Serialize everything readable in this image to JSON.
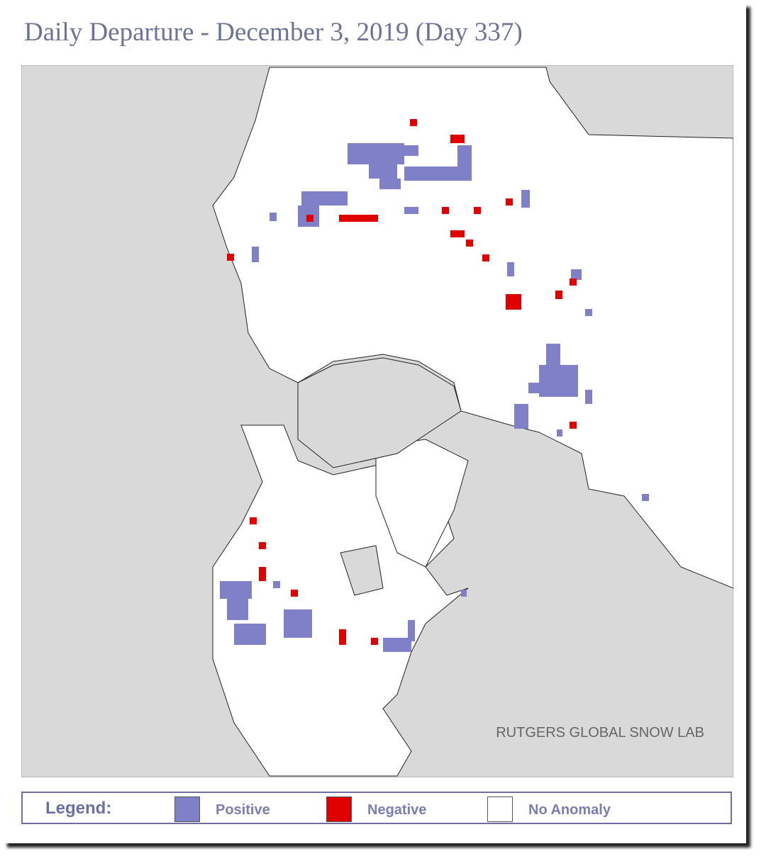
{
  "header": {
    "title": "Daily Departure - December 3, 2019 (Day 337)"
  },
  "map": {
    "credit": "RUTGERS GLOBAL SNOW LAB"
  },
  "legend": {
    "label": "Legend:",
    "items": [
      {
        "name": "Positive",
        "color": "#8080c8"
      },
      {
        "name": "Negative",
        "color": "#e00000"
      },
      {
        "name": "No Anomaly",
        "color": "#ffffff"
      }
    ]
  }
}
